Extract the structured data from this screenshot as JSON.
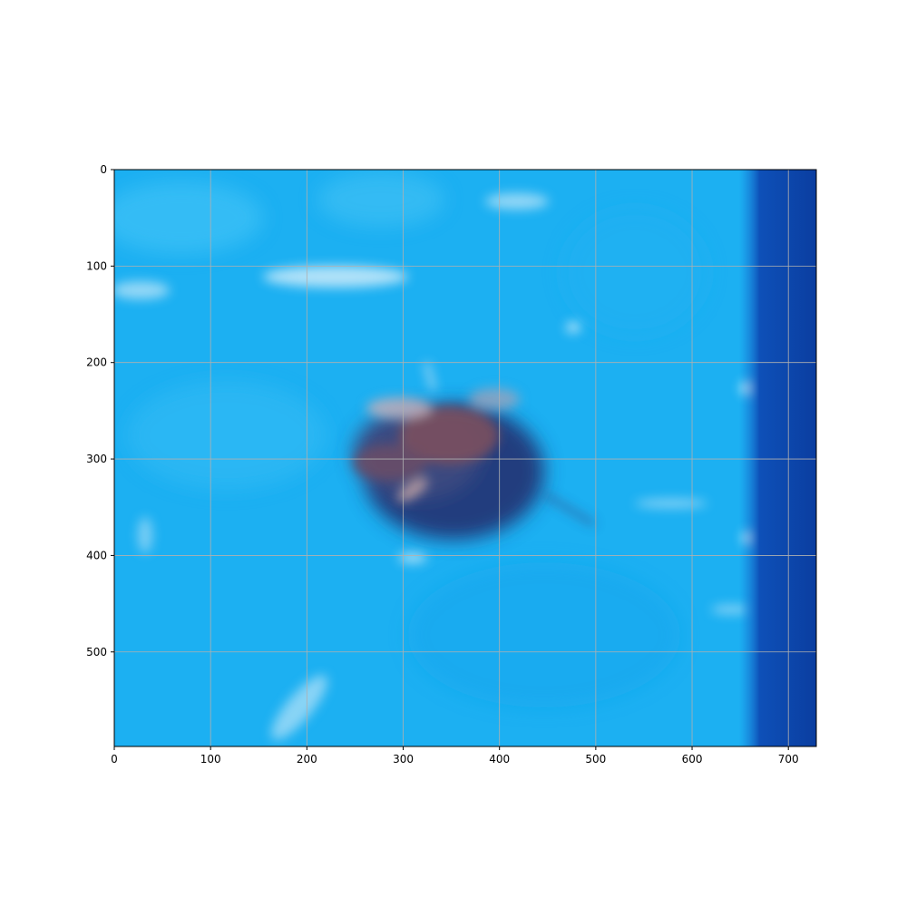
{
  "figure": {
    "image_description_colors": {
      "water": "#18aef0",
      "water_light": "#3ec0f5",
      "edge_dark": "#0a3fa8",
      "bug_dark": "#1f3a78",
      "bug_brown": "#6a4a5a",
      "ray_light": "#d8ecf8"
    },
    "axes": {
      "x_ticks": [
        "0",
        "100",
        "200",
        "300",
        "400",
        "500",
        "600",
        "700"
      ],
      "y_ticks": [
        "0",
        "100",
        "200",
        "300",
        "400",
        "500"
      ],
      "x_range": [
        0,
        729
      ],
      "y_range": [
        0,
        598
      ],
      "grid": true
    }
  }
}
